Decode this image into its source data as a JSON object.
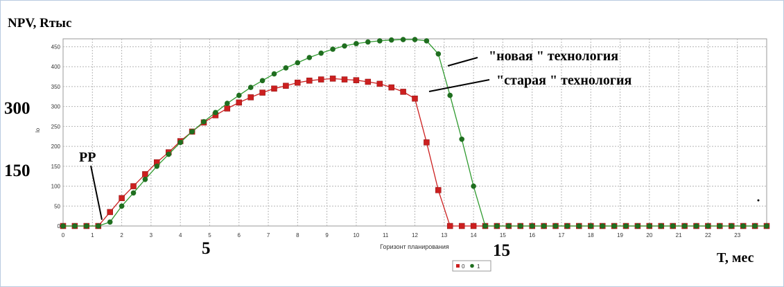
{
  "chart_data": {
    "type": "line",
    "title": "NPV, Rтыс",
    "ylabel": "lo",
    "xlabel": "Горизонт планирования",
    "x_unit_label": "T, мес",
    "xlim": [
      0,
      24
    ],
    "ylim": [
      0,
      470
    ],
    "yticks": [
      0,
      50,
      100,
      150,
      200,
      250,
      300,
      350,
      400,
      450
    ],
    "xticks": [
      0,
      1,
      2,
      3,
      4,
      5,
      6,
      7,
      8,
      9,
      10,
      11,
      12,
      13,
      14,
      15,
      16,
      17,
      18,
      19,
      20,
      21,
      22,
      23
    ],
    "grid": true,
    "legend": {
      "placement": "bottom-center",
      "labels": [
        "0",
        "1"
      ]
    },
    "annotations": {
      "new_tech": "\"новая \" технология",
      "old_tech": "\"старая \" технология",
      "pp": "PP",
      "big_300": "300",
      "big_150": "150",
      "big_5": "5",
      "big_15": "15"
    },
    "series": [
      {
        "name": "0",
        "color": "#cc1f1f",
        "marker": "square",
        "x": [
          0,
          0.4,
          0.8,
          1.2,
          1.6,
          2.0,
          2.4,
          2.8,
          3.2,
          3.6,
          4.0,
          4.4,
          4.8,
          5.2,
          5.6,
          6.0,
          6.4,
          6.8,
          7.2,
          7.6,
          8.0,
          8.4,
          8.8,
          9.2,
          9.6,
          10.0,
          10.4,
          10.8,
          11.2,
          11.6,
          12.0,
          12.4,
          12.8,
          13.2,
          13.6,
          14.0,
          14.4,
          14.8,
          15.2,
          15.6,
          16.0,
          16.4,
          16.8,
          17.2,
          17.6,
          18.0,
          18.4,
          18.8,
          19.2,
          19.6,
          20.0,
          20.4,
          20.8,
          21.2,
          21.6,
          22.0,
          22.4,
          22.8,
          23.2,
          23.6,
          24.0
        ],
        "values": [
          0,
          0,
          0,
          0,
          35,
          70,
          100,
          130,
          160,
          185,
          213,
          237,
          260,
          278,
          295,
          310,
          323,
          335,
          345,
          352,
          360,
          365,
          368,
          370,
          368,
          366,
          362,
          357,
          348,
          337,
          320,
          210,
          90,
          0,
          0,
          0,
          0,
          0,
          0,
          0,
          0,
          0,
          0,
          0,
          0,
          0,
          0,
          0,
          0,
          0,
          0,
          0,
          0,
          0,
          0,
          0,
          0,
          0,
          0,
          0,
          0
        ]
      },
      {
        "name": "1",
        "color": "#2f9a2f",
        "fill": "#1f6e1f",
        "marker": "circle",
        "x": [
          0,
          0.4,
          0.8,
          1.2,
          1.6,
          2.0,
          2.4,
          2.8,
          3.2,
          3.6,
          4.0,
          4.4,
          4.8,
          5.2,
          5.6,
          6.0,
          6.4,
          6.8,
          7.2,
          7.6,
          8.0,
          8.4,
          8.8,
          9.2,
          9.6,
          10.0,
          10.4,
          10.8,
          11.2,
          11.6,
          12.0,
          12.4,
          12.8,
          13.2,
          13.6,
          14.0,
          14.4,
          14.8,
          15.2,
          15.6,
          16.0,
          16.4,
          16.8,
          17.2,
          17.6,
          18.0,
          18.4,
          18.8,
          19.2,
          19.6,
          20.0,
          20.4,
          20.8,
          21.2,
          21.6,
          22.0,
          22.4,
          22.8,
          23.2,
          23.6,
          24.0
        ],
        "values": [
          0,
          0,
          0,
          0,
          10,
          50,
          83,
          117,
          150,
          180,
          210,
          237,
          262,
          285,
          308,
          328,
          348,
          365,
          382,
          397,
          410,
          423,
          434,
          444,
          452,
          458,
          462,
          465,
          467,
          468,
          468,
          465,
          432,
          328,
          218,
          100,
          0,
          0,
          0,
          0,
          0,
          0,
          0,
          0,
          0,
          0,
          0,
          0,
          0,
          0,
          0,
          0,
          0,
          0,
          0,
          0,
          0,
          0,
          0,
          0,
          0
        ]
      }
    ]
  }
}
